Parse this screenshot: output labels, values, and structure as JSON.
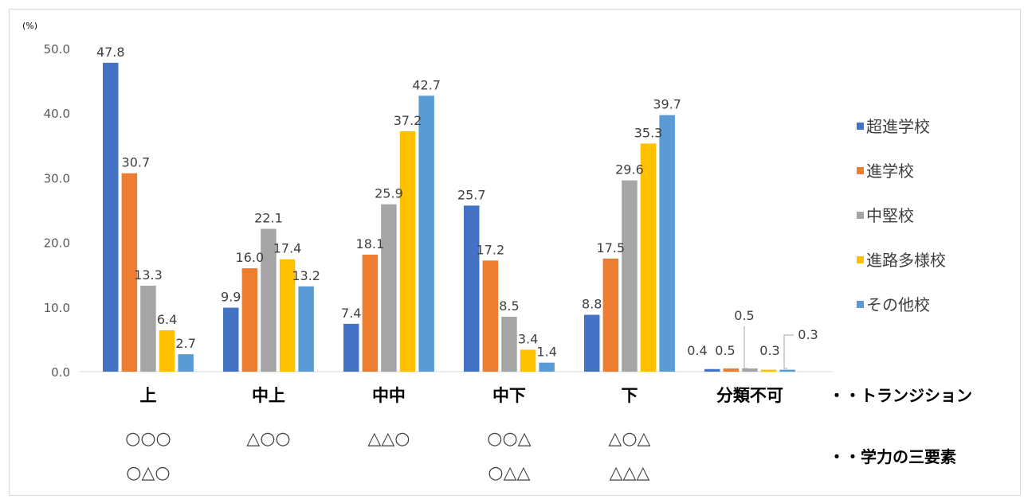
{
  "chart_data": {
    "type": "bar",
    "unit_label": "(%)",
    "title": "",
    "xlabel": "",
    "ylabel": "",
    "ylim": [
      0,
      50
    ],
    "yticks": [
      "0.0",
      "10.0",
      "20.0",
      "30.0",
      "40.0",
      "50.0"
    ],
    "grid": false,
    "legend_position": "right",
    "categories": [
      "上",
      "中上",
      "中中",
      "中下",
      "下",
      "分類不可"
    ],
    "category_sublabels": [
      [
        "○○○",
        "○△○"
      ],
      [
        "△○○"
      ],
      [
        "△△○"
      ],
      [
        "○○△",
        "○△△"
      ],
      [
        "△○△",
        "△△△"
      ],
      []
    ],
    "series": [
      {
        "name": "超進学校",
        "color": "#4472c4",
        "values": [
          47.8,
          9.9,
          7.4,
          25.7,
          8.8,
          0.4
        ]
      },
      {
        "name": "進学校",
        "color": "#ed7d31",
        "values": [
          30.7,
          16.0,
          18.1,
          17.2,
          17.5,
          0.5
        ]
      },
      {
        "name": "中堅校",
        "color": "#a5a5a5",
        "values": [
          13.3,
          22.1,
          25.9,
          8.5,
          29.6,
          0.5
        ]
      },
      {
        "name": "進路多様校",
        "color": "#ffc000",
        "values": [
          6.4,
          17.4,
          37.2,
          3.4,
          35.3,
          0.3
        ]
      },
      {
        "name": "その他校",
        "color": "#5b9bd5",
        "values": [
          2.7,
          13.2,
          42.7,
          1.4,
          39.7,
          0.3
        ]
      }
    ],
    "notes": [
      "・・トランジション",
      "・・学力の三要素"
    ]
  }
}
